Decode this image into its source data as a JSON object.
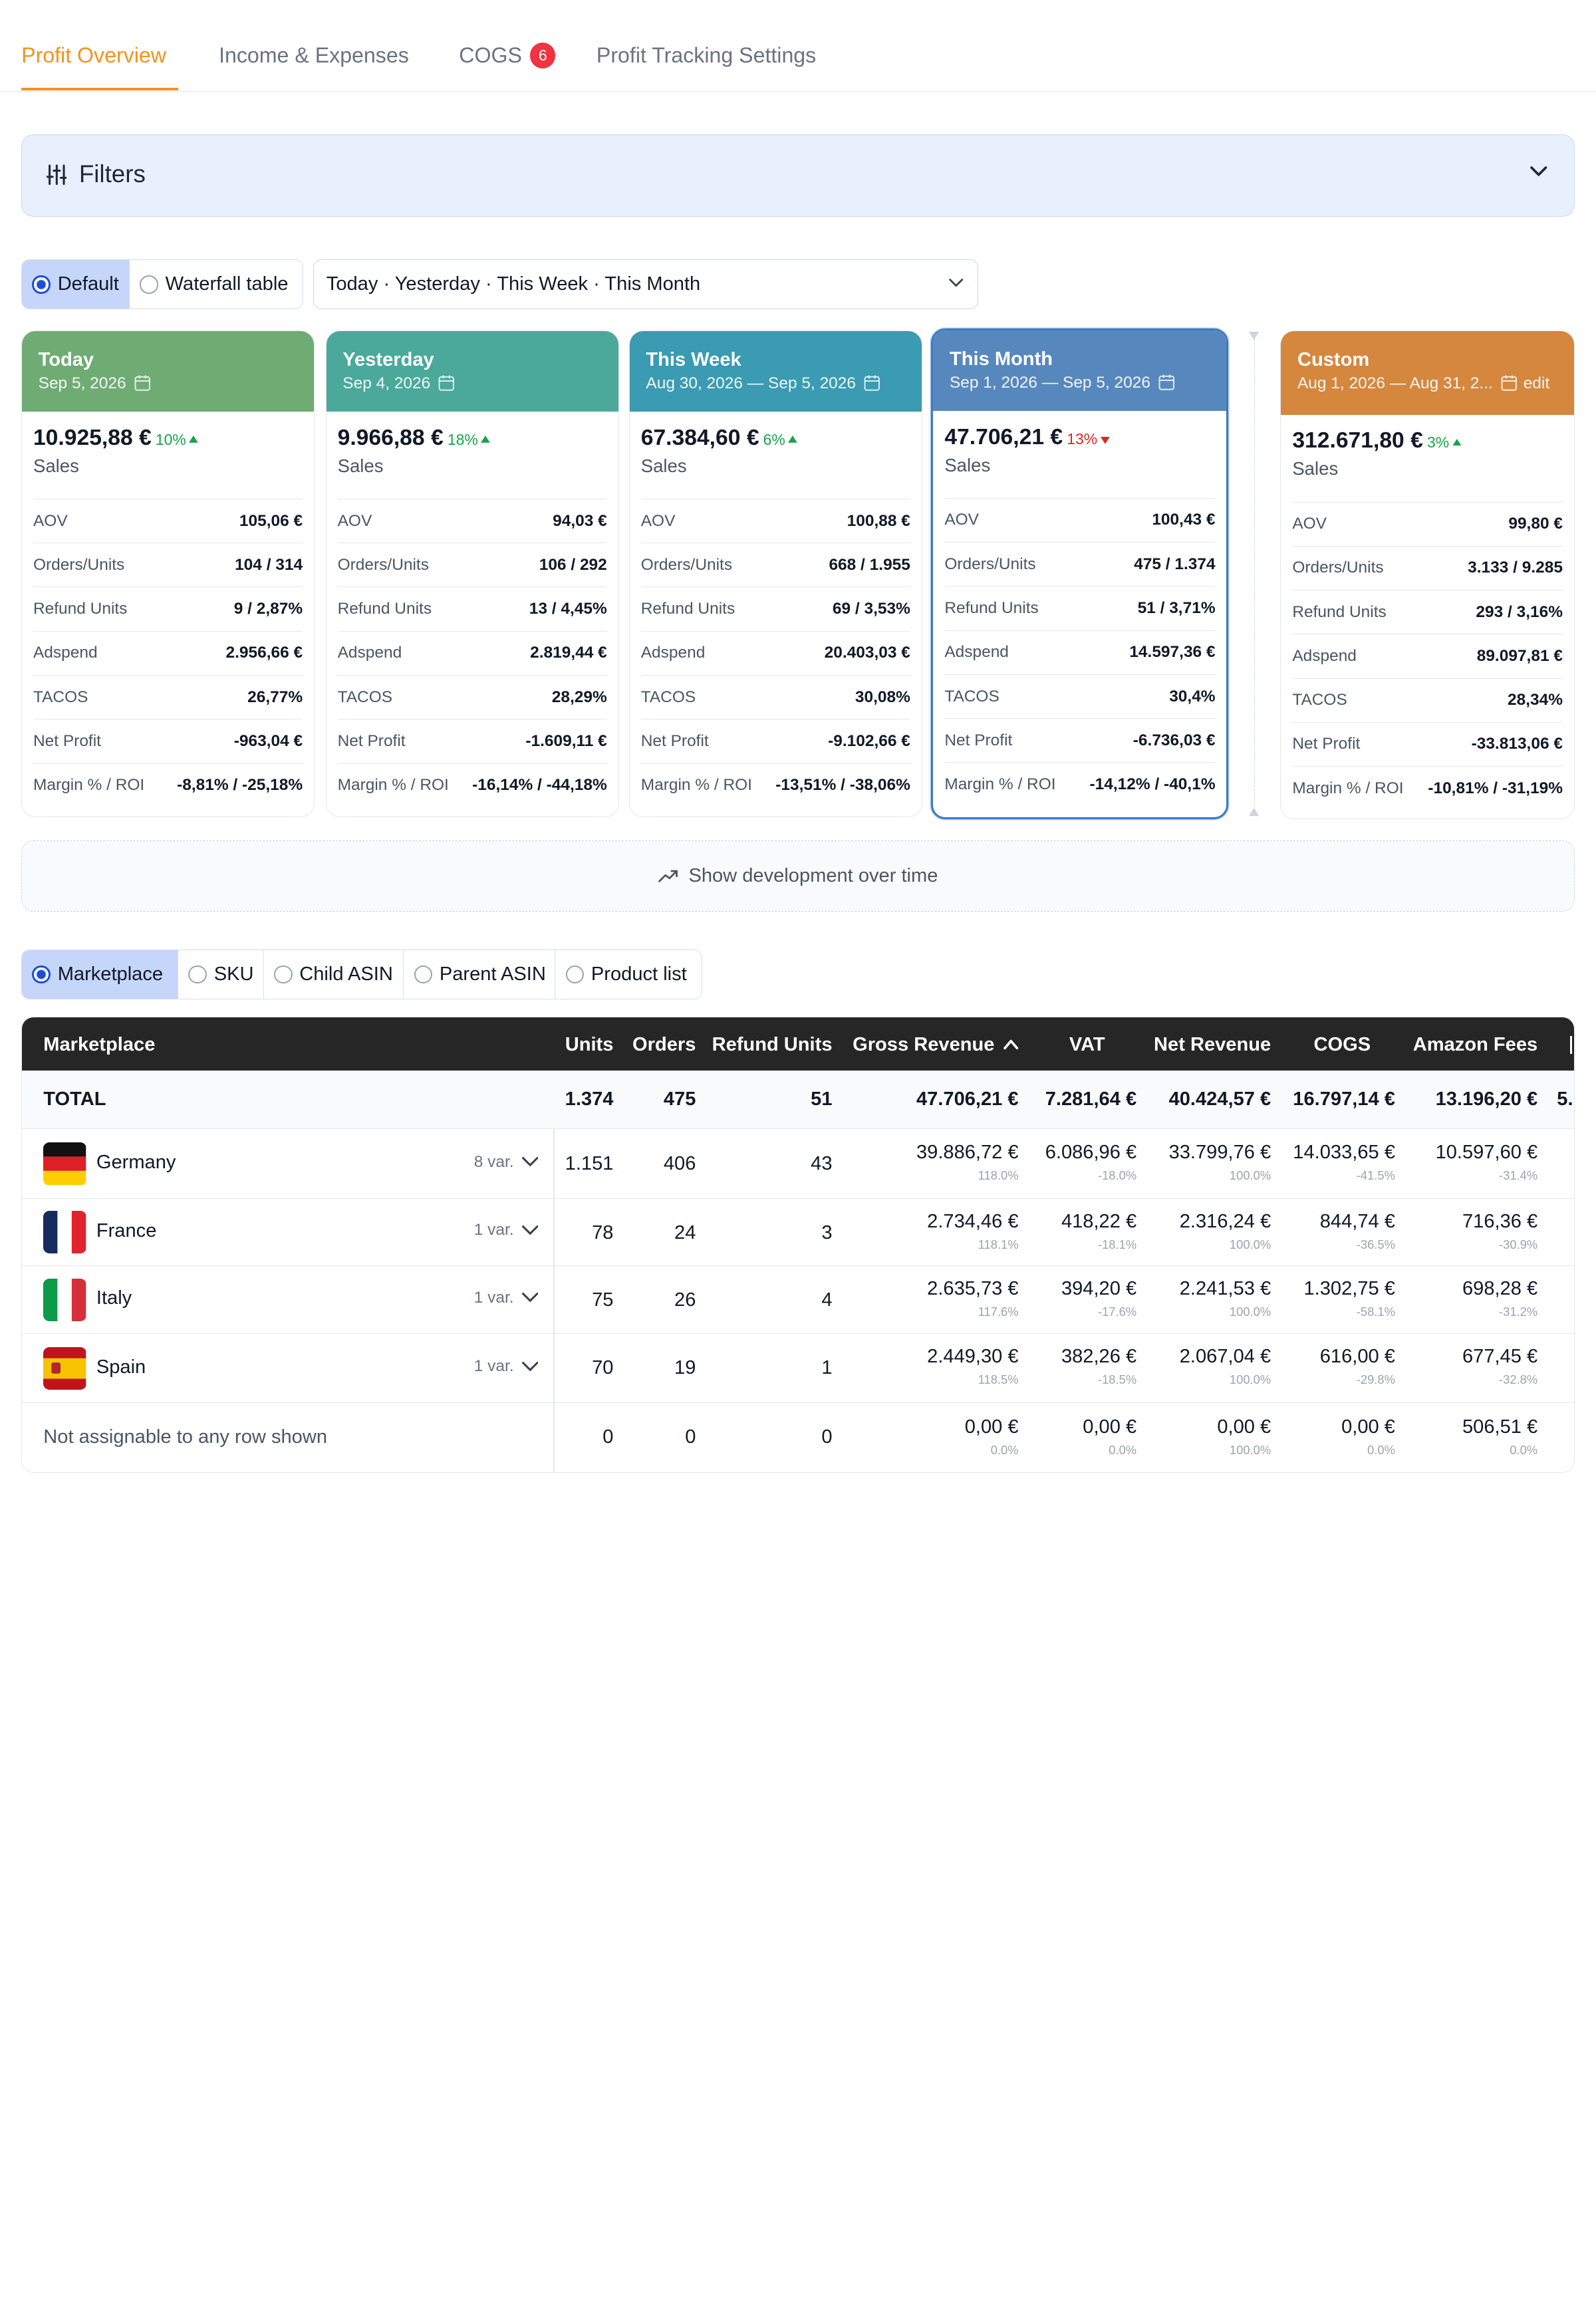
{
  "tabs": [
    {
      "label": "Profit Overview"
    },
    {
      "label": "Income & Expenses"
    },
    {
      "label": "COGS",
      "badge": "6"
    },
    {
      "label": "Profit Tracking Settings"
    }
  ],
  "filters": {
    "label": "Filters"
  },
  "view_toggle": {
    "default": "Default",
    "waterfall": "Waterfall table"
  },
  "period_select": {
    "value": "Today · Yesterday · This Week · This Month"
  },
  "row_labels": {
    "aov": "AOV",
    "orders": "Orders/Units",
    "refund": "Refund Units",
    "adspend": "Adspend",
    "tacos": "TACOS",
    "net": "Net Profit",
    "margin": "Margin % / ROI",
    "sales": "Sales"
  },
  "cards": [
    {
      "name": "Today",
      "date": "Sep 5, 2026",
      "color": "#6fac74",
      "sales": "10.925,88 €",
      "pct": "10%",
      "trend": "up",
      "aov": "105,06 €",
      "orders": "104 / 314",
      "refund": "9 / 2,87%",
      "adspend": "2.956,66 €",
      "tacos": "26,77%",
      "net": "-963,04 €",
      "margin": "-8,81% / -25,18%"
    },
    {
      "name": "Yesterday",
      "date": "Sep 4, 2026",
      "color": "#4aa99a",
      "sales": "9.966,88 €",
      "pct": "18%",
      "trend": "up",
      "aov": "94,03 €",
      "orders": "106 / 292",
      "refund": "13 / 4,45%",
      "adspend": "2.819,44 €",
      "tacos": "28,29%",
      "net": "-1.609,11 €",
      "margin": "-16,14% / -44,18%"
    },
    {
      "name": "This Week",
      "date": "Aug 30, 2026 — Sep 5, 2026",
      "color": "#3a9bb2",
      "sales": "67.384,60 €",
      "pct": "6%",
      "trend": "up",
      "aov": "100,88 €",
      "orders": "668 / 1.955",
      "refund": "69 / 3,53%",
      "adspend": "20.403,03 €",
      "tacos": "30,08%",
      "net": "-9.102,66 €",
      "margin": "-13,51% / -38,06%"
    },
    {
      "name": "This Month",
      "date": "Sep 1, 2026 — Sep 5, 2026",
      "color": "#5788bd",
      "sales": "47.706,21 €",
      "pct": "13%",
      "trend": "down",
      "aov": "100,43 €",
      "orders": "475 / 1.374",
      "refund": "51 / 3,71%",
      "adspend": "14.597,36 €",
      "tacos": "30,4%",
      "net": "-6.736,03 €",
      "margin": "-14,12% / -40,1%"
    },
    {
      "name": "Custom",
      "date": "Aug 1, 2026 — Aug 31, 2...",
      "edit": "edit",
      "color": "#d5873e",
      "sales": "312.671,80 €",
      "pct": "3%",
      "trend": "up",
      "aov": "99,80 €",
      "orders": "3.133 / 9.285",
      "refund": "293 / 3,16%",
      "adspend": "89.097,81 €",
      "tacos": "28,34%",
      "net": "-33.813,06 €",
      "margin": "-10,81% / -31,19%"
    }
  ],
  "development": {
    "label": "Show development over time"
  },
  "group_toggle": {
    "marketplace": "Marketplace",
    "sku": "SKU",
    "child": "Child ASIN",
    "parent": "Parent ASIN",
    "product": "Product list"
  },
  "table": {
    "headers": {
      "marketplace": "Marketplace",
      "units": "Units",
      "orders": "Orders",
      "refund": "Refund Units",
      "gross": "Gross Revenue",
      "vat": "VAT",
      "net": "Net Revenue",
      "cogs": "COGS",
      "fees": "Amazon Fees"
    },
    "total": {
      "label": "TOTAL",
      "units": "1.374",
      "orders": "475",
      "refund": "51",
      "gross": "47.706,21 €",
      "vat": "7.281,64 €",
      "net": "40.424,57 €",
      "cogs": "16.797,14 €",
      "fees": "13.196,20 €",
      "overflow": "5."
    },
    "rows": [
      {
        "country": "Germany",
        "var": "8 var.",
        "units": "1.151",
        "orders": "406",
        "refund": "43",
        "gross": "39.886,72 €",
        "gross_p": "118.0%",
        "vat": "6.086,96 €",
        "vat_p": "-18.0%",
        "net": "33.799,76 €",
        "net_p": "100.0%",
        "cogs": "14.033,65 €",
        "cogs_p": "-41.5%",
        "fees": "10.597,60 €",
        "fees_p": "-31.4%"
      },
      {
        "country": "France",
        "var": "1 var.",
        "units": "78",
        "orders": "24",
        "refund": "3",
        "gross": "2.734,46 €",
        "gross_p": "118.1%",
        "vat": "418,22 €",
        "vat_p": "-18.1%",
        "net": "2.316,24 €",
        "net_p": "100.0%",
        "cogs": "844,74 €",
        "cogs_p": "-36.5%",
        "fees": "716,36 €",
        "fees_p": "-30.9%"
      },
      {
        "country": "Italy",
        "var": "1 var.",
        "units": "75",
        "orders": "26",
        "refund": "4",
        "gross": "2.635,73 €",
        "gross_p": "117.6%",
        "vat": "394,20 €",
        "vat_p": "-17.6%",
        "net": "2.241,53 €",
        "net_p": "100.0%",
        "cogs": "1.302,75 €",
        "cogs_p": "-58.1%",
        "fees": "698,28 €",
        "fees_p": "-31.2%"
      },
      {
        "country": "Spain",
        "var": "1 var.",
        "units": "70",
        "orders": "19",
        "refund": "1",
        "gross": "2.449,30 €",
        "gross_p": "118.5%",
        "vat": "382,26 €",
        "vat_p": "-18.5%",
        "net": "2.067,04 €",
        "net_p": "100.0%",
        "cogs": "616,00 €",
        "cogs_p": "-29.8%",
        "fees": "677,45 €",
        "fees_p": "-32.8%"
      }
    ],
    "unassigned": {
      "label": "Not assignable to any row shown",
      "units": "0",
      "orders": "0",
      "refund": "0",
      "gross": "0,00 €",
      "gross_p": "0.0%",
      "vat": "0,00 €",
      "vat_p": "0.0%",
      "net": "0,00 €",
      "net_p": "100.0%",
      "cogs": "0,00 €",
      "cogs_p": "0.0%",
      "fees": "506,51 €",
      "fees_p": "0.0%"
    }
  },
  "colors": {
    "accent": "#f5921e",
    "badge": "#ef3340",
    "positive": "#16a34a",
    "negative": "#dc2626",
    "header_bg": "#262626"
  }
}
